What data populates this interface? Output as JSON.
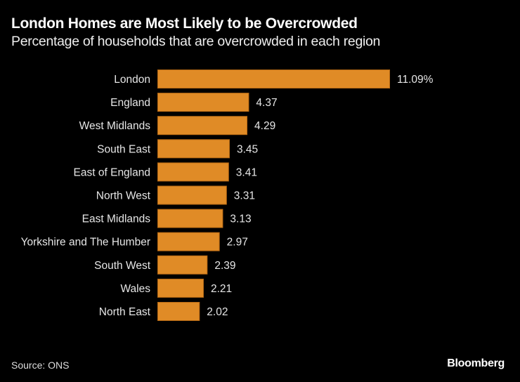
{
  "chart_data": {
    "type": "bar",
    "orientation": "horizontal",
    "title": "London Homes are Most Likely to be Overcrowded",
    "subtitle": "Percentage of households that are overcrowded in each region",
    "categories": [
      "London",
      "England",
      "West Midlands",
      "South East",
      "East of England",
      "North West",
      "East Midlands",
      "Yorkshire and The Humber",
      "South West",
      "Wales",
      "North East"
    ],
    "values": [
      11.09,
      4.37,
      4.29,
      3.45,
      3.41,
      3.31,
      3.13,
      2.97,
      2.39,
      2.21,
      2.02
    ],
    "value_labels": [
      "11.09%",
      "4.37",
      "4.29",
      "3.45",
      "3.41",
      "3.31",
      "3.13",
      "2.97",
      "2.39",
      "2.21",
      "2.02"
    ],
    "xlim": [
      0,
      11.09
    ],
    "grid": false,
    "bar_color": "#e08b26",
    "bar_border_color": "#b86a14",
    "background": "#000000"
  },
  "footer": {
    "source": "Source: ONS",
    "logo": "Bloomberg"
  }
}
